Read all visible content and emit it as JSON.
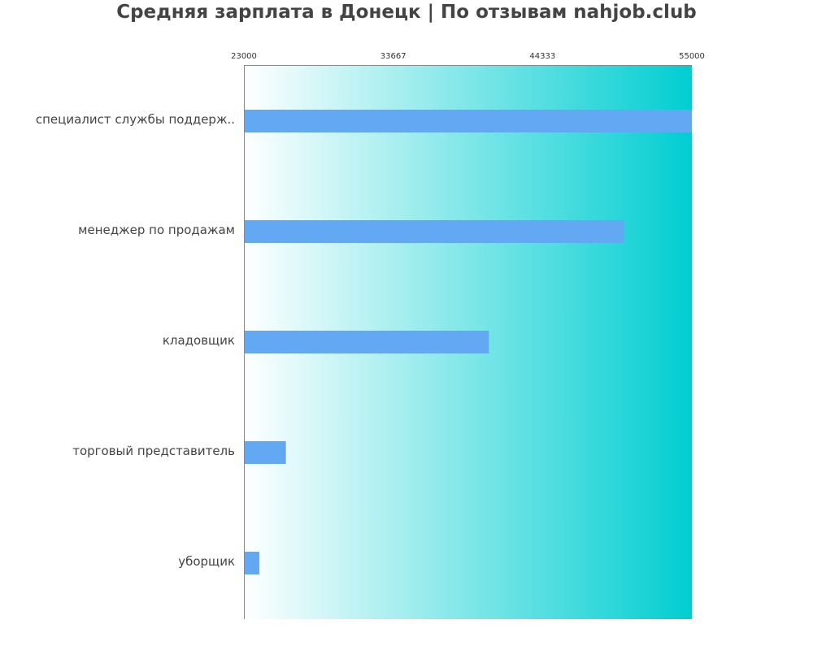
{
  "chart_data": {
    "type": "bar",
    "orientation": "horizontal",
    "title": "Средняя зарплата в Донецк | По отзывам nahjob.club",
    "xlabel": "",
    "ylabel": "",
    "xlim": [
      23000,
      55000
    ],
    "xticks": [
      "23000",
      "33667",
      "44333",
      "55000"
    ],
    "xtick_values": [
      23000,
      33667,
      44333,
      55000
    ],
    "xaxis_position": "top",
    "categories": [
      "специалист службы поддерж..",
      "менеджер по продажам",
      "кладовщик",
      "торговый представитель",
      "уборщик"
    ],
    "values": [
      55000,
      50200,
      40500,
      26000,
      24100
    ],
    "grid": false,
    "legend": "none",
    "colors": {
      "bar": "#63a8f2",
      "background_gradient_start": "#ffffff",
      "background_gradient_end": "#00ced1",
      "axis": "#888888",
      "title": "#444444",
      "label": "#444444"
    }
  }
}
